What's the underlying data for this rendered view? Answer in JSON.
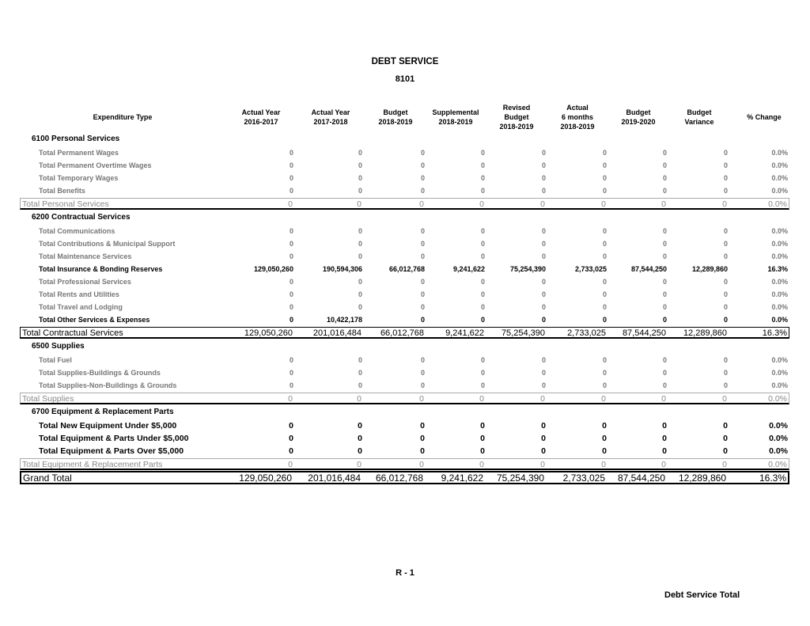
{
  "header": {
    "title": "DEBT SERVICE",
    "subtitle": "8101"
  },
  "table": {
    "columns": [
      [
        "Expenditure Type"
      ],
      [
        "Actual Year",
        "2016-2017"
      ],
      [
        "Actual Year",
        "2017-2018"
      ],
      [
        "Budget",
        "2018-2019"
      ],
      [
        "Supplemental",
        "2018-2019"
      ],
      [
        "Revised",
        "Budget",
        "2018-2019"
      ],
      [
        "Actual",
        "6 months",
        "2018-2019"
      ],
      [
        "Budget",
        "2019-2020"
      ],
      [
        "Budget",
        "Variance"
      ],
      [
        "% Change"
      ]
    ],
    "sections": [
      {
        "title": "6100 Personal Services",
        "rows": [
          {
            "style": "detail",
            "cells": [
              "Total Permanent Wages",
              "0",
              "0",
              "0",
              "0",
              "0",
              "0",
              "0",
              "0",
              "0.0%"
            ]
          },
          {
            "style": "detail",
            "cells": [
              "Total Permanent Overtime Wages",
              "0",
              "0",
              "0",
              "0",
              "0",
              "0",
              "0",
              "0",
              "0.0%"
            ]
          },
          {
            "style": "detail",
            "cells": [
              "Total Temporary Wages",
              "0",
              "0",
              "0",
              "0",
              "0",
              "0",
              "0",
              "0",
              "0.0%"
            ]
          },
          {
            "style": "detail",
            "cells": [
              "Total Benefits",
              "0",
              "0",
              "0",
              "0",
              "0",
              "0",
              "0",
              "0",
              "0.0%"
            ]
          }
        ],
        "total": {
          "style": "total-grey",
          "cells": [
            "Total Personal Services",
            "0",
            "0",
            "0",
            "0",
            "0",
            "0",
            "0",
            "0",
            "0.0%"
          ]
        }
      },
      {
        "title": "6200 Contractual Services",
        "rows": [
          {
            "style": "detail",
            "cells": [
              "Total Communications",
              "0",
              "0",
              "0",
              "0",
              "0",
              "0",
              "0",
              "0",
              "0.0%"
            ]
          },
          {
            "style": "detail",
            "cells": [
              "Total Contributions & Municipal Support",
              "0",
              "0",
              "0",
              "0",
              "0",
              "0",
              "0",
              "0",
              "0.0%"
            ]
          },
          {
            "style": "detail",
            "cells": [
              "Total Maintenance Services",
              "0",
              "0",
              "0",
              "0",
              "0",
              "0",
              "0",
              "0",
              "0.0%"
            ]
          },
          {
            "style": "detail-bold",
            "cells": [
              "Total Insurance & Bonding Reserves",
              "129,050,260",
              "190,594,306",
              "66,012,768",
              "9,241,622",
              "75,254,390",
              "2,733,025",
              "87,544,250",
              "12,289,860",
              "16.3%"
            ]
          },
          {
            "style": "detail",
            "cells": [
              "Total Professional Services",
              "0",
              "0",
              "0",
              "0",
              "0",
              "0",
              "0",
              "0",
              "0.0%"
            ]
          },
          {
            "style": "detail",
            "cells": [
              "Total Rents and Utilities",
              "0",
              "0",
              "0",
              "0",
              "0",
              "0",
              "0",
              "0",
              "0.0%"
            ]
          },
          {
            "style": "detail",
            "cells": [
              "Total Travel and Lodging",
              "0",
              "0",
              "0",
              "0",
              "0",
              "0",
              "0",
              "0",
              "0.0%"
            ]
          },
          {
            "style": "detail-bold",
            "cells": [
              "Total Other Services & Expenses",
              "0",
              "10,422,178",
              "0",
              "0",
              "0",
              "0",
              "0",
              "0",
              "0.0%"
            ]
          }
        ],
        "total": {
          "style": "total-black",
          "cells": [
            "Total Contractual Services",
            "129,050,260",
            "201,016,484",
            "66,012,768",
            "9,241,622",
            "75,254,390",
            "2,733,025",
            "87,544,250",
            "12,289,860",
            "16.3%"
          ]
        }
      },
      {
        "title": "6500 Supplies",
        "rows": [
          {
            "style": "detail",
            "cells": [
              "Total Fuel",
              "0",
              "0",
              "0",
              "0",
              "0",
              "0",
              "0",
              "0",
              "0.0%"
            ]
          },
          {
            "style": "detail",
            "cells": [
              "Total Supplies-Buildings & Grounds",
              "0",
              "0",
              "0",
              "0",
              "0",
              "0",
              "0",
              "0",
              "0.0%"
            ]
          },
          {
            "style": "detail",
            "cells": [
              "Total Supplies-Non-Buildings & Grounds",
              "0",
              "0",
              "0",
              "0",
              "0",
              "0",
              "0",
              "0",
              "0.0%"
            ]
          }
        ],
        "total": {
          "style": "total-grey",
          "cells": [
            "Total Supplies",
            "0",
            "0",
            "0",
            "0",
            "0",
            "0",
            "0",
            "0",
            "0.0%"
          ]
        }
      },
      {
        "title": "6700 Equipment & Replacement Parts",
        "rows": [
          {
            "style": "detail-large",
            "cells": [
              "Total New Equipment Under $5,000",
              "0",
              "0",
              "0",
              "0",
              "0",
              "0",
              "0",
              "0",
              "0.0%"
            ]
          },
          {
            "style": "detail-large",
            "cells": [
              "Total Equipment & Parts Under $5,000",
              "0",
              "0",
              "0",
              "0",
              "0",
              "0",
              "0",
              "0",
              "0.0%"
            ]
          },
          {
            "style": "detail-large",
            "cells": [
              "Total Equipment & Parts Over $5,000",
              "0",
              "0",
              "0",
              "0",
              "0",
              "0",
              "0",
              "0",
              "0.0%"
            ]
          }
        ],
        "total": {
          "style": "total-grey",
          "cells": [
            "Total Equipment & Replacement Parts",
            "0",
            "0",
            "0",
            "0",
            "0",
            "0",
            "0",
            "0",
            "0.0%"
          ]
        }
      }
    ],
    "grand_total": {
      "style": "grand",
      "cells": [
        "Grand Total",
        "129,050,260",
        "201,016,484",
        "66,012,768",
        "9,241,622",
        "75,254,390",
        "2,733,025",
        "87,544,250",
        "12,289,860",
        "16.3%"
      ]
    }
  },
  "footer": {
    "page": "R - 1",
    "label": "Debt Service Total"
  }
}
